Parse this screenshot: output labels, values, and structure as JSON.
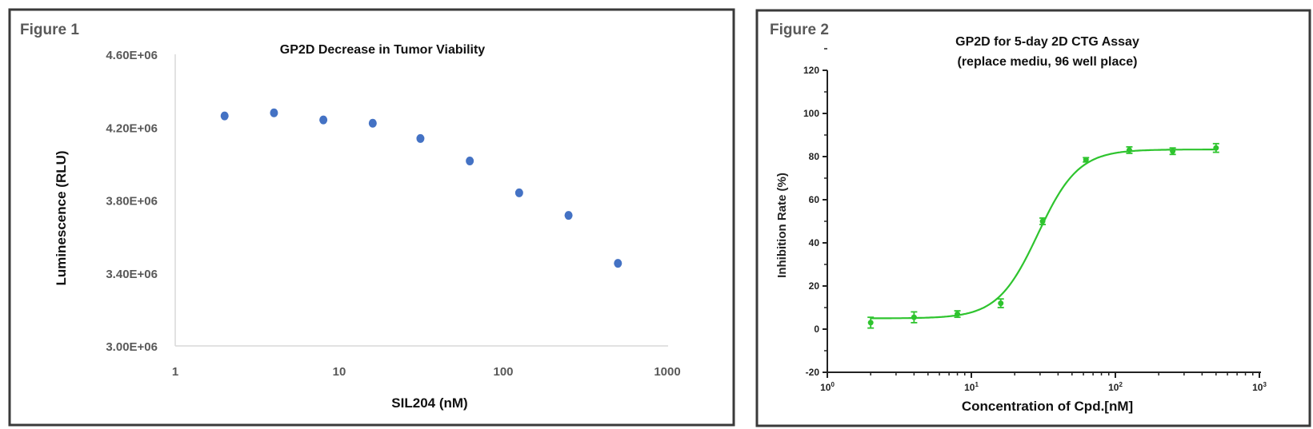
{
  "chart_data": [
    {
      "type": "scatter",
      "figure_label": "Figure 1",
      "title": "GP2D Decrease in Tumor Viability",
      "xlabel": "SIL204 (nM)",
      "ylabel": "Luminescence (RLU)",
      "x_scale": "log",
      "xlim": [
        1,
        1000
      ],
      "ylim": [
        3000000,
        4600000
      ],
      "x_ticks": [
        "1",
        "10",
        "100",
        "1000"
      ],
      "x_tick_values": [
        1,
        10,
        100,
        1000
      ],
      "y_ticks": [
        "3.00E+06",
        "3.40E+06",
        "3.80E+06",
        "4.20E+06",
        "4.60E+06"
      ],
      "y_tick_values": [
        3000000,
        3400000,
        3800000,
        4200000,
        4600000
      ],
      "grid": false,
      "color": "#4472c4",
      "x": [
        2,
        4,
        8,
        16,
        31.25,
        62.5,
        125,
        250,
        500
      ],
      "y": [
        4262000,
        4279000,
        4240000,
        4222000,
        4138000,
        4015000,
        3840000,
        3716000,
        3453000
      ]
    },
    {
      "type": "scatter",
      "figure_label": "Figure 2",
      "title": "GP2D for 5-day 2D CTG Assay",
      "subtitle": "(replace mediu, 96 well place)",
      "xlabel": "Concentration of Cpd.[nM]",
      "ylabel": "Inhibition Rate (%)",
      "x_scale": "log",
      "xlim": [
        1,
        1000
      ],
      "ylim": [
        -20,
        120
      ],
      "x_ticks": [
        {
          "base": "10",
          "exp": "0"
        },
        {
          "base": "10",
          "exp": "1"
        },
        {
          "base": "10",
          "exp": "2"
        },
        {
          "base": "10",
          "exp": "3"
        }
      ],
      "x_tick_values": [
        1,
        10,
        100,
        1000
      ],
      "y_ticks": [
        "-20",
        "0",
        "20",
        "40",
        "60",
        "80",
        "100",
        "120"
      ],
      "y_tick_values": [
        -20,
        0,
        20,
        40,
        60,
        80,
        100,
        120
      ],
      "grid": false,
      "fit_curve": "sigmoidal dose-response",
      "color": "#2ec42e",
      "x": [
        2,
        4,
        8,
        16,
        31.25,
        62.5,
        125,
        250,
        500
      ],
      "y": [
        3,
        5.5,
        7,
        12,
        50,
        78.5,
        83,
        82.5,
        84
      ],
      "error": [
        2.5,
        2.5,
        1.5,
        2,
        1.5,
        1,
        1.5,
        1.5,
        2
      ]
    }
  ]
}
